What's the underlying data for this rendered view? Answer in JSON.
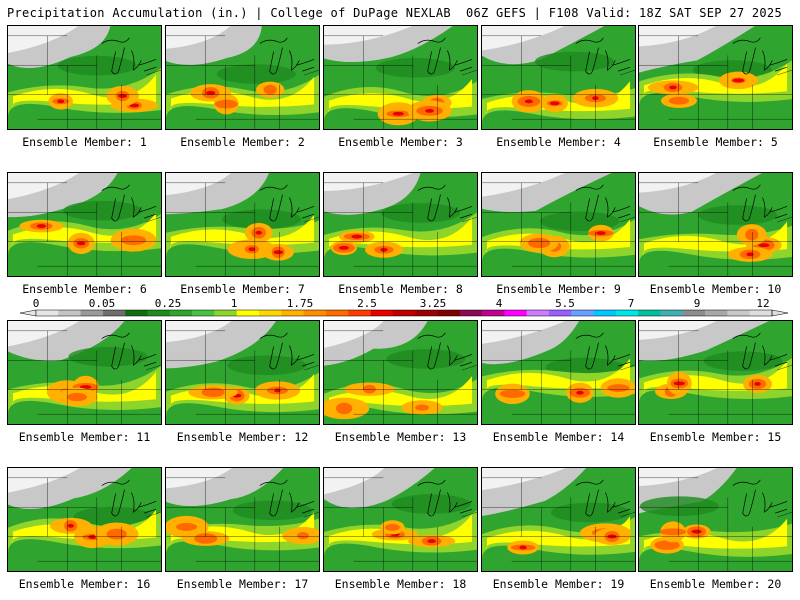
{
  "header": {
    "title": "Precipitation Accumulation (in.) | College of DuPage NEXLAB",
    "run_info": "06Z GEFS | F108 Valid: 18Z SAT SEP 27 2025"
  },
  "colorbar": {
    "tick_labels": [
      "0",
      "0.05",
      "0.25",
      "1",
      "1.75",
      "2.5",
      "3.25",
      "4",
      "5.5",
      "7",
      "9",
      "12"
    ],
    "colors": [
      "#e6e6e6",
      "#c4c4c4",
      "#9a9a9a",
      "#6e6e6e",
      "#0f6e0f",
      "#1f8a1f",
      "#2fa52f",
      "#47c247",
      "#8fd42a",
      "#ffff00",
      "#ffd700",
      "#ffb000",
      "#ff8c00",
      "#ff6a00",
      "#ff3c00",
      "#e60000",
      "#c00000",
      "#9a0000",
      "#800000",
      "#8b0a50",
      "#c00090",
      "#ff00ff",
      "#ce7bff",
      "#9a60ff",
      "#6aa0ff",
      "#00c8ff",
      "#00e6e6",
      "#00c0a0",
      "#40b0b0",
      "#8c8c8c",
      "#a8a8a8",
      "#c8c8c8",
      "#dedede"
    ]
  },
  "panels": [
    {
      "label": "Ensemble Member: 1"
    },
    {
      "label": "Ensemble Member: 2"
    },
    {
      "label": "Ensemble Member: 3"
    },
    {
      "label": "Ensemble Member: 4"
    },
    {
      "label": "Ensemble Member: 5"
    },
    {
      "label": "Ensemble Member: 6"
    },
    {
      "label": "Ensemble Member: 7"
    },
    {
      "label": "Ensemble Member: 8"
    },
    {
      "label": "Ensemble Member: 9"
    },
    {
      "label": "Ensemble Member: 10"
    },
    {
      "label": "Ensemble Member: 11"
    },
    {
      "label": "Ensemble Member: 12"
    },
    {
      "label": "Ensemble Member: 13"
    },
    {
      "label": "Ensemble Member: 14"
    },
    {
      "label": "Ensemble Member: 15"
    },
    {
      "label": "Ensemble Member: 16"
    },
    {
      "label": "Ensemble Member: 17"
    },
    {
      "label": "Ensemble Member: 18"
    },
    {
      "label": "Ensemble Member: 19"
    },
    {
      "label": "Ensemble Member: 20"
    }
  ]
}
